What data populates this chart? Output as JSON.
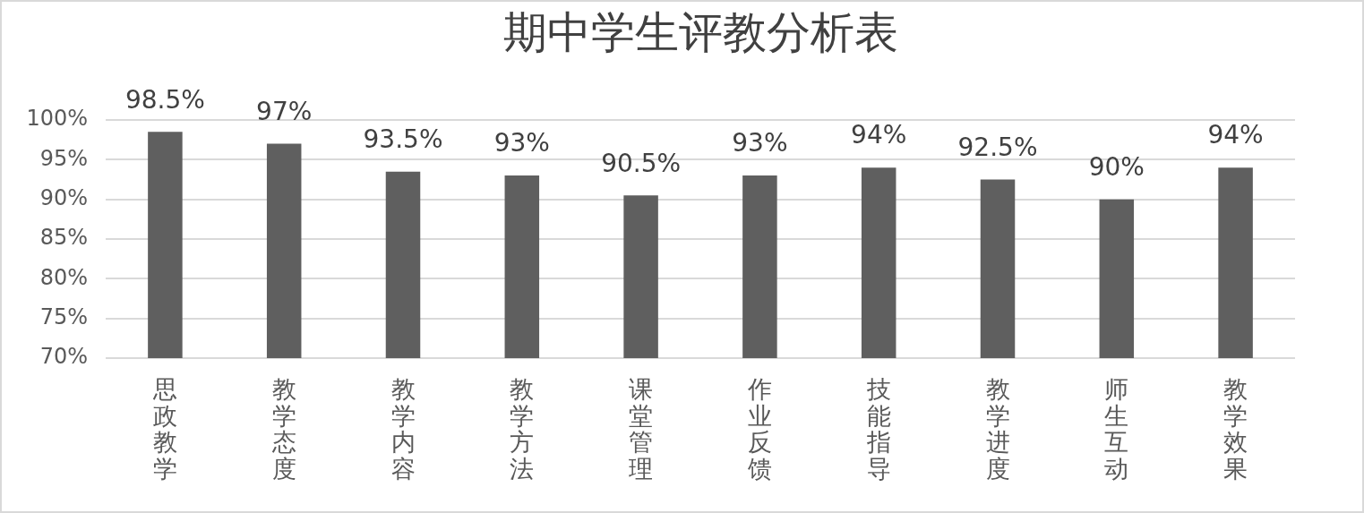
{
  "chart_data": {
    "type": "bar",
    "title": "期中学生评教分析表",
    "categories": [
      "思政教学",
      "教学态度",
      "教学内容",
      "教学方法",
      "课堂管理",
      "作业反馈",
      "技能指导",
      "教学进度",
      "师生互动",
      "教学效果"
    ],
    "values": [
      98.5,
      97,
      93.5,
      93,
      90.5,
      93,
      94,
      92.5,
      90,
      94
    ],
    "value_labels": [
      "98.5%",
      "97%",
      "93.5%",
      "93%",
      "90.5%",
      "93%",
      "94%",
      "92.5%",
      "90%",
      "94%"
    ],
    "color": "#5f5f5f",
    "ylim": [
      70,
      100
    ],
    "yticks": [
      {
        "value": 70,
        "label": "70%"
      },
      {
        "value": 75,
        "label": "75%"
      },
      {
        "value": 80,
        "label": "80%"
      },
      {
        "value": 85,
        "label": "85%"
      },
      {
        "value": 90,
        "label": "90%"
      },
      {
        "value": 95,
        "label": "95%"
      },
      {
        "value": 100,
        "label": "100%"
      }
    ],
    "grid": "y"
  }
}
